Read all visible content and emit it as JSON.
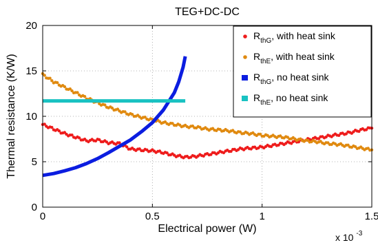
{
  "chart_data": {
    "type": "scatter",
    "title": "TEG+DC-DC",
    "xlabel": "Electrical power (W)",
    "ylabel": "Thermal resistance (K/W)",
    "x_multiplier": {
      "base": "x 10",
      "exponent": "-3"
    },
    "xlim": [
      0,
      0.0015
    ],
    "ylim": [
      0,
      20
    ],
    "x_ticks": [
      0,
      0.0005,
      0.001,
      0.0015
    ],
    "x_tick_labels": [
      "0",
      "0.5",
      "1",
      "1.5"
    ],
    "y_ticks": [
      0,
      5,
      10,
      15,
      20
    ],
    "y_tick_labels": [
      "0",
      "5",
      "10",
      "15",
      "20"
    ],
    "grid": "dotted",
    "legend_position": "top-right",
    "series": [
      {
        "label_main": "R",
        "label_sub": "thG",
        "label_rest": ", with heat sink",
        "color": "#ee1c1c",
        "style": "markers",
        "x": [
          0.0,
          5e-05,
          0.0001,
          0.00015,
          0.0002,
          0.00025,
          0.0003,
          0.00035,
          0.0004,
          0.00045,
          0.0005,
          0.00055,
          0.0006,
          0.00065,
          0.0007,
          0.00075,
          0.0008,
          0.00085,
          0.0009,
          0.00095,
          0.001,
          0.00105,
          0.0011,
          0.00115,
          0.0012,
          0.00125,
          0.0013,
          0.00135,
          0.0014,
          0.00145,
          0.0015
        ],
        "y": [
          9.1,
          8.6,
          8.1,
          7.7,
          7.3,
          7.4,
          7.1,
          7.0,
          6.4,
          6.3,
          6.2,
          6.0,
          5.7,
          5.5,
          5.6,
          5.8,
          6.0,
          6.2,
          6.4,
          6.5,
          6.6,
          6.8,
          7.0,
          7.2,
          7.4,
          7.6,
          7.8,
          8.0,
          8.2,
          8.5,
          8.7
        ]
      },
      {
        "label_main": "R",
        "label_sub": "thE",
        "label_rest": ", with heat sink",
        "color": "#e08a10",
        "style": "markers",
        "x": [
          0.0,
          5e-05,
          0.0001,
          0.00015,
          0.0002,
          0.00025,
          0.0003,
          0.00035,
          0.0004,
          0.00045,
          0.0005,
          0.00055,
          0.0006,
          0.00065,
          0.0007,
          0.00075,
          0.0008,
          0.00085,
          0.0009,
          0.00095,
          0.001,
          0.00105,
          0.0011,
          0.00115,
          0.0012,
          0.00125,
          0.0013,
          0.00135,
          0.0014,
          0.00145,
          0.0015
        ],
        "y": [
          14.6,
          13.8,
          13.2,
          12.6,
          12.0,
          11.5,
          11.0,
          10.6,
          10.2,
          9.9,
          9.6,
          9.3,
          9.1,
          8.9,
          8.8,
          8.6,
          8.5,
          8.4,
          8.2,
          8.1,
          7.9,
          7.8,
          7.7,
          7.5,
          7.3,
          7.2,
          7.0,
          6.9,
          6.7,
          6.5,
          6.3
        ]
      },
      {
        "label_main": "R",
        "label_sub": "thG",
        "label_rest": ", no heat sink",
        "color": "#0b1de0",
        "style": "line",
        "x": [
          0.0,
          5e-05,
          0.0001,
          0.00015,
          0.0002,
          0.00025,
          0.0003,
          0.00035,
          0.0004,
          0.00045,
          0.0005,
          0.00055,
          0.0006,
          0.00062,
          0.00064,
          0.00065
        ],
        "y": [
          3.5,
          3.7,
          4.0,
          4.35,
          4.8,
          5.35,
          6.0,
          6.7,
          7.4,
          8.3,
          9.3,
          10.7,
          12.6,
          13.8,
          15.4,
          16.6
        ]
      },
      {
        "label_main": "R",
        "label_sub": "thE",
        "label_rest": ", no heat sink",
        "color": "#19c2c2",
        "style": "line",
        "x": [
          0.0,
          0.00065
        ],
        "y": [
          11.7,
          11.7
        ]
      }
    ]
  }
}
